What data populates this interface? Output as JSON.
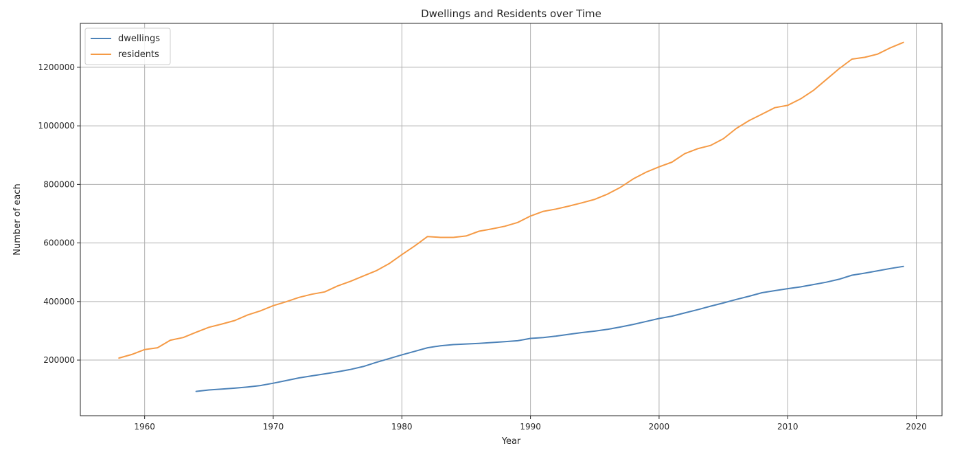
{
  "chart_data": {
    "type": "line",
    "title": "Dwellings and Residents over Time",
    "xlabel": "Year",
    "ylabel": "Number of each",
    "xlim": [
      1955,
      2022
    ],
    "ylim": [
      10000,
      1350000
    ],
    "xticks": [
      1960,
      1970,
      1980,
      1990,
      2000,
      2010,
      2020
    ],
    "yticks": [
      200000,
      400000,
      600000,
      800000,
      1000000,
      1200000
    ],
    "grid": true,
    "legend_position": "top-left",
    "series": [
      {
        "name": "dwellings",
        "color": "#4c82b8",
        "x": [
          1964,
          1965,
          1966,
          1967,
          1968,
          1969,
          1970,
          1971,
          1972,
          1973,
          1974,
          1975,
          1976,
          1977,
          1978,
          1979,
          1980,
          1981,
          1982,
          1983,
          1984,
          1985,
          1986,
          1987,
          1988,
          1989,
          1990,
          1991,
          1992,
          1993,
          1994,
          1995,
          1996,
          1997,
          1998,
          1999,
          2000,
          2001,
          2002,
          2003,
          2004,
          2005,
          2006,
          2007,
          2008,
          2009,
          2010,
          2011,
          2012,
          2013,
          2014,
          2015,
          2016,
          2017,
          2018,
          2019
        ],
        "y": [
          93000,
          98000,
          101000,
          104000,
          108000,
          113000,
          121000,
          130000,
          139000,
          146000,
          153000,
          160000,
          168000,
          178000,
          192000,
          205000,
          218000,
          230000,
          242000,
          249000,
          253000,
          255000,
          257000,
          260000,
          263000,
          266000,
          274000,
          277000,
          282000,
          288000,
          294000,
          299000,
          305000,
          313000,
          322000,
          332000,
          342000,
          350000,
          361000,
          372000,
          384000,
          395000,
          407000,
          418000,
          430000,
          437000,
          444000,
          450000,
          458000,
          466000,
          476000,
          490000,
          497000,
          505000,
          513000,
          520000
        ]
      },
      {
        "name": "residents",
        "color": "#f59a45",
        "x": [
          1958,
          1959,
          1960,
          1961,
          1962,
          1963,
          1964,
          1965,
          1966,
          1967,
          1968,
          1969,
          1970,
          1971,
          1972,
          1973,
          1974,
          1975,
          1976,
          1977,
          1978,
          1979,
          1980,
          1981,
          1982,
          1983,
          1984,
          1985,
          1986,
          1987,
          1988,
          1989,
          1990,
          1991,
          1992,
          1993,
          1994,
          1995,
          1996,
          1997,
          1998,
          1999,
          2000,
          2001,
          2002,
          2003,
          2004,
          2005,
          2006,
          2007,
          2008,
          2009,
          2010,
          2011,
          2012,
          2013,
          2014,
          2015,
          2016,
          2017,
          2018,
          2019
        ],
        "y": [
          207000,
          219000,
          236000,
          242000,
          268000,
          277000,
          295000,
          312000,
          323000,
          335000,
          354000,
          368000,
          386000,
          399000,
          414000,
          425000,
          433000,
          453000,
          469000,
          487000,
          505000,
          529000,
          560000,
          590000,
          622000,
          619000,
          619000,
          624000,
          640000,
          648000,
          657000,
          670000,
          692000,
          708000,
          716000,
          726000,
          737000,
          749000,
          767000,
          790000,
          819000,
          842000,
          860000,
          876000,
          905000,
          922000,
          933000,
          956000,
          991000,
          1018000,
          1040000,
          1062000,
          1070000,
          1092000,
          1121000,
          1158000,
          1195000,
          1228000,
          1234000,
          1245000,
          1267000,
          1285000
        ]
      }
    ]
  }
}
